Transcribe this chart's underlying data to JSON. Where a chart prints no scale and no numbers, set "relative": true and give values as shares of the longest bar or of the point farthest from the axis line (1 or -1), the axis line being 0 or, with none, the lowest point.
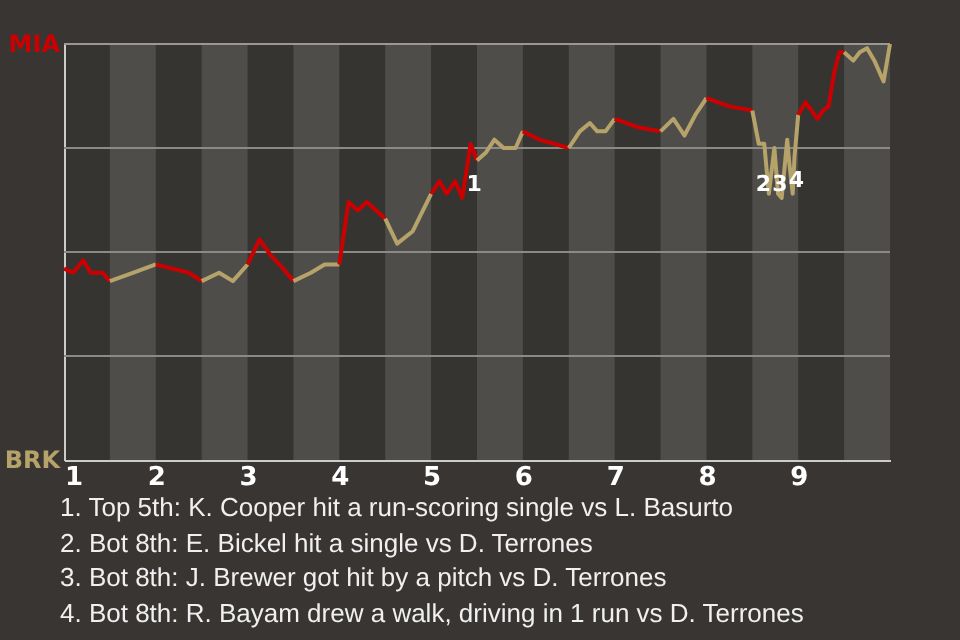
{
  "chart_data": {
    "type": "line",
    "relative": true,
    "xlim": [
      1,
      10
    ],
    "xticks": [
      1,
      2,
      3,
      4,
      5,
      6,
      7,
      8,
      9
    ],
    "series": [
      {
        "color": "#cc0000",
        "x": [
          1.0,
          1.1,
          1.21,
          1.29,
          1.42,
          1.5
        ],
        "values": [
          0.46,
          0.45,
          0.48,
          0.45,
          0.45,
          0.43
        ]
      },
      {
        "color": "#b5a36a",
        "x": [
          1.5,
          1.75,
          2.0
        ],
        "values": [
          0.43,
          0.45,
          0.47
        ]
      },
      {
        "color": "#cc0000",
        "x": [
          2.0,
          2.18,
          2.36,
          2.5
        ],
        "values": [
          0.47,
          0.46,
          0.45,
          0.43
        ]
      },
      {
        "color": "#b5a36a",
        "x": [
          2.5,
          2.69,
          2.84,
          3.0
        ],
        "values": [
          0.43,
          0.45,
          0.43,
          0.47
        ]
      },
      {
        "color": "#cc0000",
        "x": [
          3.0,
          3.13,
          3.26,
          3.39,
          3.5
        ],
        "values": [
          0.47,
          0.53,
          0.49,
          0.46,
          0.43
        ]
      },
      {
        "color": "#b5a36a",
        "x": [
          3.5,
          3.69,
          3.84,
          4.0
        ],
        "values": [
          0.43,
          0.45,
          0.47,
          0.47
        ]
      },
      {
        "color": "#cc0000",
        "x": [
          4.0,
          4.1,
          4.2,
          4.3,
          4.4,
          4.5
        ],
        "values": [
          0.47,
          0.62,
          0.6,
          0.62,
          0.6,
          0.58
        ]
      },
      {
        "color": "#b5a36a",
        "x": [
          4.5,
          4.63,
          4.8,
          5.0
        ],
        "values": [
          0.58,
          0.52,
          0.55,
          0.64
        ]
      },
      {
        "color": "#cc0000",
        "x": [
          5.0,
          5.09,
          5.17,
          5.26,
          5.34,
          5.43,
          5.5
        ],
        "values": [
          0.64,
          0.67,
          0.64,
          0.67,
          0.63,
          0.76,
          0.72
        ]
      },
      {
        "color": "#b5a36a",
        "x": [
          5.5,
          5.6,
          5.69,
          5.79,
          5.92,
          6.0
        ],
        "values": [
          0.72,
          0.74,
          0.77,
          0.75,
          0.75,
          0.79
        ]
      },
      {
        "color": "#cc0000",
        "x": [
          6.0,
          6.18,
          6.5
        ],
        "values": [
          0.79,
          0.77,
          0.75
        ]
      },
      {
        "color": "#b5a36a",
        "x": [
          6.5,
          6.62,
          6.73,
          6.81,
          6.9,
          7.0
        ],
        "values": [
          0.75,
          0.79,
          0.81,
          0.79,
          0.79,
          0.82
        ]
      },
      {
        "color": "#cc0000",
        "x": [
          7.0,
          7.25,
          7.5
        ],
        "values": [
          0.82,
          0.8,
          0.79
        ]
      },
      {
        "color": "#b5a36a",
        "x": [
          7.5,
          7.64,
          7.76,
          7.88,
          8.0
        ],
        "values": [
          0.79,
          0.82,
          0.78,
          0.83,
          0.87
        ]
      },
      {
        "color": "#cc0000",
        "x": [
          8.0,
          8.25,
          8.5
        ],
        "values": [
          0.87,
          0.85,
          0.84
        ]
      },
      {
        "color": "#b5a36a",
        "x": [
          8.5,
          8.57,
          8.63,
          8.68,
          8.74,
          8.78,
          8.82,
          8.88,
          8.9,
          8.94,
          8.96,
          9.0
        ],
        "values": [
          0.84,
          0.76,
          0.76,
          0.64,
          0.75,
          0.64,
          0.63,
          0.77,
          0.72,
          0.64,
          0.73,
          0.83
        ]
      },
      {
        "color": "#cc0000",
        "x": [
          9.0,
          9.08,
          9.21,
          9.27,
          9.33,
          9.4,
          9.45,
          9.5
        ],
        "values": [
          0.83,
          0.86,
          0.82,
          0.84,
          0.85,
          0.94,
          0.98,
          0.98
        ]
      },
      {
        "color": "#b5a36a",
        "x": [
          9.5,
          9.6,
          9.67,
          9.75,
          9.83,
          9.93,
          10.0
        ],
        "values": [
          0.98,
          0.96,
          0.98,
          0.99,
          0.96,
          0.91,
          1
        ]
      }
    ],
    "ref_lines": [
      {
        "axis": "y",
        "value": 1,
        "color": "#9a9894"
      },
      {
        "axis": "y",
        "value": 0.75,
        "color": "#8c8a86"
      },
      {
        "axis": "y",
        "value": 0.5,
        "color": "#8c8a86"
      },
      {
        "axis": "y",
        "value": 0.25,
        "color": "#8c8a86"
      }
    ],
    "bands": [
      {
        "axis": "x",
        "from": 1.5,
        "to": 2,
        "color": "#4f4d4a"
      },
      {
        "axis": "x",
        "from": 2.5,
        "to": 3,
        "color": "#4f4d4a"
      },
      {
        "axis": "x",
        "from": 3.5,
        "to": 4,
        "color": "#4f4d4a"
      },
      {
        "axis": "x",
        "from": 4.5,
        "to": 5,
        "color": "#4f4d4a"
      },
      {
        "axis": "x",
        "from": 5.5,
        "to": 6,
        "color": "#4f4d4a"
      },
      {
        "axis": "x",
        "from": 6.5,
        "to": 7,
        "color": "#4f4d4a"
      },
      {
        "axis": "x",
        "from": 7.5,
        "to": 8,
        "color": "#4f4d4a"
      },
      {
        "axis": "x",
        "from": 8.5,
        "to": 9,
        "color": "#4f4d4a"
      },
      {
        "axis": "x",
        "from": 9.5,
        "to": 10,
        "color": "#4f4d4a"
      }
    ],
    "annotations": [
      {
        "text": "1",
        "x": 5.47,
        "y": 0.66
      },
      {
        "text": "2",
        "x": 8.62,
        "y": 0.66
      },
      {
        "text": "3",
        "x": 8.8,
        "y": 0.66
      },
      {
        "text": "4",
        "x": 8.98,
        "y": 0.67
      },
      "MIA",
      "BRK",
      "1. Top 5th: K. Cooper hit a run-scoring single vs L. Basurto",
      "2. Bot 8th: E. Bickel hit a single vs D. Terrones",
      "3. Bot 8th: J. Brewer got hit by a pitch vs D. Terrones",
      "4. Bot 8th: R. Bayam drew a walk, driving in 1 run vs D. Terrones"
    ]
  }
}
